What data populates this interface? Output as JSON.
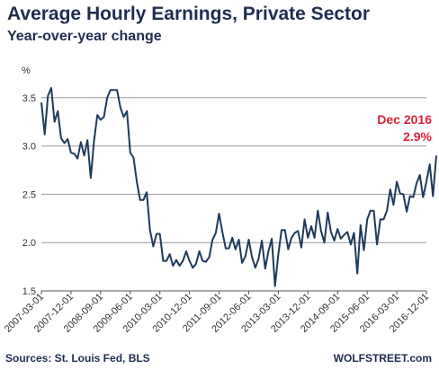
{
  "title": "Average Hourly Earnings, Private Sector",
  "subtitle": "Year-over-year change",
  "source": "Sources: St. Louis Fed, BLS",
  "brand": "WOLFSTREET.com",
  "colors": {
    "line": "#1f3a5c",
    "annotation": "#e0203a",
    "grid": "#9a9a9a",
    "text": "#1f2d4e"
  },
  "chart_data": {
    "type": "line",
    "title": "Average Hourly Earnings, Private Sector",
    "subtitle": "Year-over-year change",
    "ylabel": "%",
    "ylim": [
      1.5,
      3.6
    ],
    "yticks": [
      "1.5",
      "2.0",
      "2.5",
      "3.0",
      "3.5"
    ],
    "grid": true,
    "xtick_labels": [
      "2007-03-01",
      "2007-12-01",
      "2008-09-01",
      "2009-06-01",
      "2010-03-01",
      "2010-12-01",
      "2011-09-01",
      "2012-06-01",
      "2013-03-01",
      "2013-12-01",
      "2014-09-01",
      "2015-06-01",
      "2016-03-01",
      "2016-12-01"
    ],
    "x_start": "2007-03",
    "x_end": "2016-12",
    "values": [
      3.45,
      3.12,
      3.52,
      3.6,
      3.25,
      3.36,
      3.08,
      3.03,
      3.07,
      2.93,
      2.92,
      2.87,
      3.04,
      2.9,
      3.06,
      2.67,
      3.05,
      3.32,
      3.27,
      3.3,
      3.5,
      3.58,
      3.58,
      3.58,
      3.4,
      3.3,
      3.36,
      2.93,
      2.88,
      2.63,
      2.44,
      2.44,
      2.52,
      2.13,
      1.96,
      2.09,
      2.09,
      1.81,
      1.81,
      1.88,
      1.76,
      1.82,
      1.76,
      1.81,
      1.91,
      1.81,
      1.74,
      1.78,
      1.91,
      1.81,
      1.8,
      1.85,
      2.03,
      2.1,
      2.3,
      2.11,
      1.94,
      1.94,
      2.05,
      1.93,
      2.03,
      1.79,
      1.86,
      2.03,
      1.85,
      1.74,
      1.83,
      2.02,
      1.73,
      1.91,
      2.04,
      1.55,
      1.88,
      2.13,
      2.13,
      1.93,
      2.05,
      2.1,
      2.12,
      1.95,
      2.24,
      2.05,
      2.17,
      2.05,
      2.33,
      2.12,
      2.0,
      2.31,
      2.11,
      2.02,
      2.14,
      2.04,
      2.08,
      2.11,
      1.98,
      2.1,
      1.68,
      2.18,
      1.92,
      2.24,
      2.33,
      2.33,
      1.98,
      2.24,
      2.24,
      2.33,
      2.55,
      2.39,
      2.63,
      2.51,
      2.5,
      2.32,
      2.48,
      2.47,
      2.61,
      2.7,
      2.47,
      2.63,
      2.81,
      2.48,
      2.9
    ]
  },
  "annotation": {
    "label": "Dec 2016",
    "value": "2.9%"
  }
}
